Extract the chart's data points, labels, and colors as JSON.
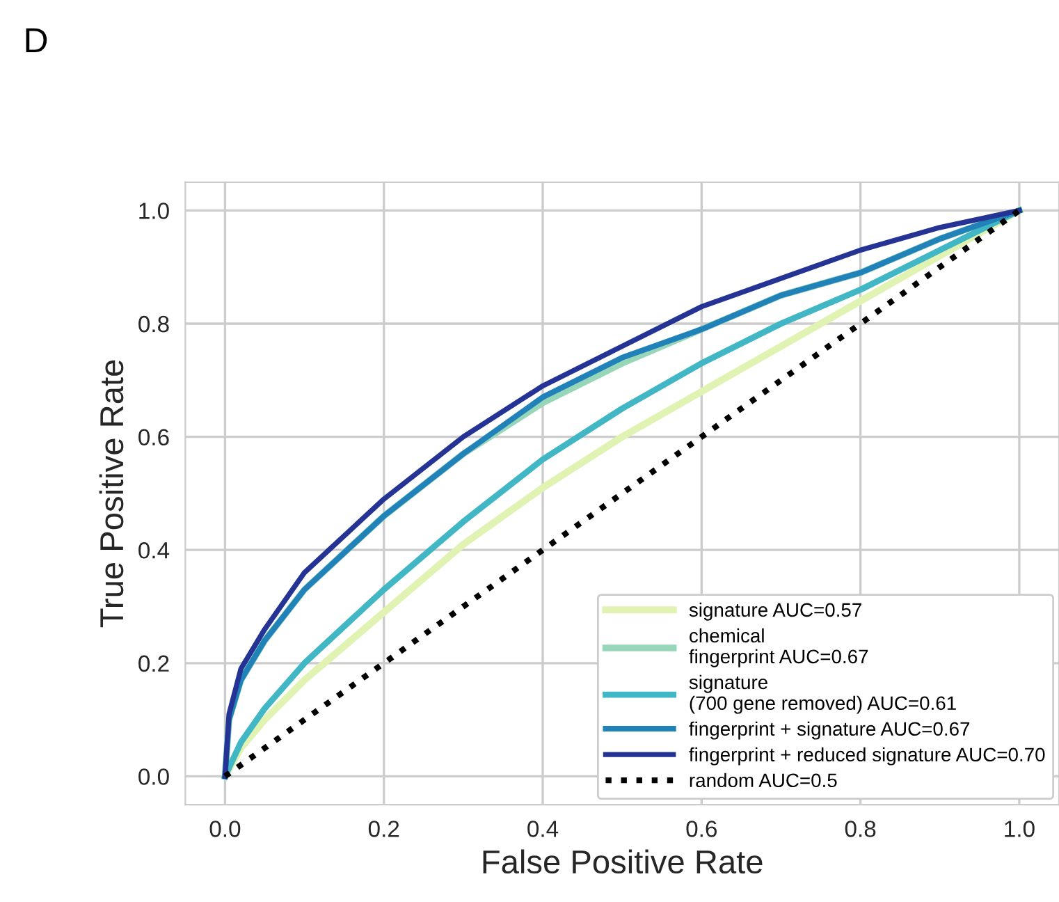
{
  "chart_data": {
    "type": "line",
    "title": "D",
    "xlabel": "False Positive Rate",
    "ylabel": "True Positive Rate",
    "xlim": [
      -0.05,
      1.05
    ],
    "ylim": [
      -0.05,
      1.05
    ],
    "xticks": [
      {
        "value": 0,
        "label": "0.0"
      },
      0.2,
      0.4,
      0.6,
      0.8,
      {
        "value": 1,
        "label": "1.0"
      }
    ],
    "yticks": [
      {
        "value": 0,
        "label": "0.0"
      },
      0.2,
      0.4,
      0.6,
      0.8,
      {
        "value": 1,
        "label": "1.0"
      }
    ],
    "grid": true,
    "legend": "bottom right",
    "marker": "none",
    "series": [
      {
        "name": "signature AUC=0.57",
        "color": "#e0f3b2",
        "x": [
          0,
          0.02,
          0.05,
          0.1,
          0.2,
          0.3,
          0.4,
          0.5,
          0.6,
          0.7,
          0.8,
          0.9,
          1
        ],
        "values": [
          0,
          0.05,
          0.1,
          0.17,
          0.29,
          0.41,
          0.51,
          0.6,
          0.68,
          0.76,
          0.84,
          0.92,
          1
        ]
      },
      {
        "name": "chemical\nfingerprint AUC=0.67",
        "color": "#97d6b9",
        "x": [
          0,
          0.005,
          0.02,
          0.05,
          0.1,
          0.2,
          0.3,
          0.4,
          0.5,
          0.6,
          0.7,
          0.8,
          0.9,
          1
        ],
        "values": [
          0,
          0.1,
          0.17,
          0.24,
          0.33,
          0.46,
          0.57,
          0.66,
          0.73,
          0.79,
          0.85,
          0.89,
          0.95,
          1
        ]
      },
      {
        "name": "signature\n(700 gene removed) AUC=0.61",
        "color": "#41b6c4",
        "x": [
          0,
          0.02,
          0.05,
          0.1,
          0.2,
          0.3,
          0.4,
          0.5,
          0.6,
          0.7,
          0.8,
          0.9,
          1
        ],
        "values": [
          0,
          0.06,
          0.12,
          0.2,
          0.33,
          0.45,
          0.56,
          0.65,
          0.73,
          0.8,
          0.86,
          0.93,
          1
        ]
      },
      {
        "name": "fingerprint + signature AUC=0.67",
        "color": "#2182b9",
        "x": [
          0,
          0.005,
          0.02,
          0.05,
          0.1,
          0.2,
          0.3,
          0.4,
          0.5,
          0.6,
          0.7,
          0.8,
          0.9,
          1
        ],
        "values": [
          0,
          0.1,
          0.17,
          0.24,
          0.33,
          0.46,
          0.57,
          0.67,
          0.74,
          0.79,
          0.85,
          0.89,
          0.95,
          1
        ]
      },
      {
        "name": "fingerprint + reduced signature AUC=0.70",
        "color": "#253494",
        "x": [
          0,
          0.005,
          0.02,
          0.05,
          0.1,
          0.2,
          0.3,
          0.4,
          0.5,
          0.6,
          0.7,
          0.8,
          0.9,
          1
        ],
        "values": [
          0,
          0.11,
          0.19,
          0.26,
          0.36,
          0.49,
          0.6,
          0.69,
          0.76,
          0.83,
          0.88,
          0.93,
          0.97,
          1
        ]
      },
      {
        "name": "random AUC=0.5",
        "color": "#000000",
        "line_style": "dotted",
        "x": [
          0,
          1
        ],
        "values": [
          0,
          1
        ]
      }
    ]
  }
}
